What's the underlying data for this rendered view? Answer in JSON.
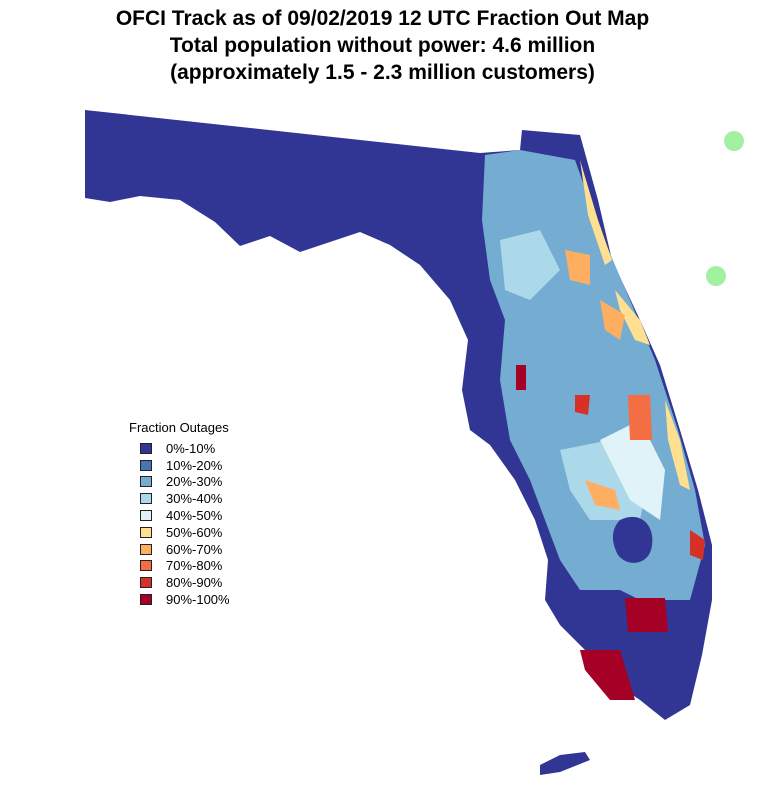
{
  "title": {
    "line1": "OFCI Track as of 09/02/2019 12 UTC Fraction Out Map",
    "line2": "Total population without power: 4.6 million",
    "line3": "(approximately  1.5 - 2.3  million customers)"
  },
  "legend": {
    "title": "Fraction Outages",
    "items": [
      {
        "label": "0%-10%",
        "color": "#313695"
      },
      {
        "label": "10%-20%",
        "color": "#4575b4"
      },
      {
        "label": "20%-30%",
        "color": "#74add1"
      },
      {
        "label": "30%-40%",
        "color": "#abd9e9"
      },
      {
        "label": "40%-50%",
        "color": "#e0f3f8"
      },
      {
        "label": "50%-60%",
        "color": "#fee090"
      },
      {
        "label": "60%-70%",
        "color": "#fdae61"
      },
      {
        "label": "70%-80%",
        "color": "#f46d43"
      },
      {
        "label": "80%-90%",
        "color": "#d73027"
      },
      {
        "label": "90%-100%",
        "color": "#a50026"
      }
    ]
  },
  "track_marker_color": "#90ee90"
}
